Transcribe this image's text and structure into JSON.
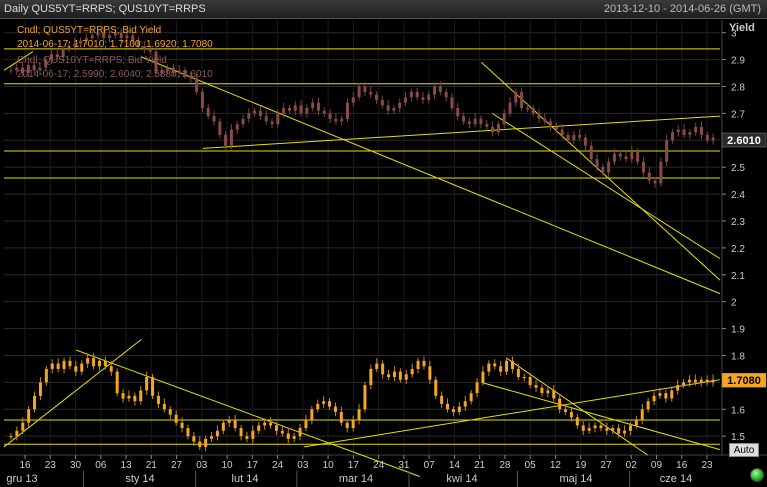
{
  "window": {
    "title": "Daily QUS5YT=RRPS; QUS10YT=RRPS",
    "date_range": "2013-12-10 - 2014-06-26 (GMT)"
  },
  "legend": {
    "series1_line1": "Cndl; QUS5YT=RRPS; Bid Yield",
    "series1_line2": "2014-06-17; 1.7010; 1.7100; 1.6920; 1.7080",
    "series2_line1": "Cndl; QUS10YT=RRPS; Bid Yield",
    "series2_line2": "2014-06-17; 2.5990; 2.6040; 2.5880; 2.6010"
  },
  "controls": {
    "auto_label": "Auto"
  },
  "colors": {
    "series1": "#f5a623",
    "series2": "#8b4a4a",
    "trendline": "#e6e000",
    "axis_text": "#cccccc",
    "grid": "#2a2a2a"
  },
  "chart_data": {
    "type": "candlestick",
    "y_axis_label": "Yield",
    "y_ticks": [
      "3",
      "2.9",
      "2.8",
      "2.7",
      "2.6",
      "2.5",
      "2.4",
      "2.3",
      "2.2",
      "2.1",
      "2",
      "1.9",
      "1.8",
      "1.7",
      "1.6",
      "1.5"
    ],
    "ylim": [
      1.43,
      3.01
    ],
    "x_day_ticks": [
      "16",
      "23",
      "30",
      "06",
      "13",
      "21",
      "27",
      "03",
      "10",
      "17",
      "24",
      "03",
      "10",
      "17",
      "24",
      "31",
      "07",
      "14",
      "21",
      "28",
      "05",
      "12",
      "19",
      "27",
      "02",
      "09",
      "16",
      "23"
    ],
    "x_month_labels": [
      "gru 13",
      "sty 14",
      "lut 14",
      "mar 14",
      "kwi 14",
      "maj 14",
      "cze 14"
    ],
    "price_labels": {
      "series1_last": "1.7080",
      "series2_last": "2.6010"
    },
    "series": [
      {
        "name": "QUS10YT=RRPS",
        "style": "candlestick",
        "last": {
          "date": "2014-06-17",
          "open": 2.599,
          "high": 2.604,
          "low": 2.588,
          "close": 2.601
        },
        "close": [
          2.86,
          2.87,
          2.85,
          2.88,
          2.86,
          2.87,
          2.9,
          2.92,
          2.91,
          2.94,
          2.95,
          2.96,
          2.97,
          2.98,
          2.99,
          3.0,
          2.98,
          2.99,
          3.0,
          2.98,
          2.99,
          2.97,
          2.95,
          2.94,
          2.93,
          2.85,
          2.86,
          2.87,
          2.85,
          2.86,
          2.84,
          2.83,
          2.78,
          2.72,
          2.69,
          2.67,
          2.62,
          2.58,
          2.64,
          2.66,
          2.68,
          2.7,
          2.71,
          2.69,
          2.67,
          2.66,
          2.7,
          2.72,
          2.71,
          2.73,
          2.7,
          2.72,
          2.74,
          2.71,
          2.7,
          2.68,
          2.67,
          2.68,
          2.74,
          2.76,
          2.8,
          2.78,
          2.77,
          2.75,
          2.73,
          2.71,
          2.72,
          2.74,
          2.76,
          2.78,
          2.76,
          2.75,
          2.77,
          2.8,
          2.78,
          2.76,
          2.72,
          2.69,
          2.67,
          2.66,
          2.68,
          2.66,
          2.65,
          2.63,
          2.66,
          2.7,
          2.74,
          2.78,
          2.72,
          2.72,
          2.7,
          2.68,
          2.67,
          2.65,
          2.64,
          2.62,
          2.6,
          2.62,
          2.61,
          2.58,
          2.53,
          2.5,
          2.48,
          2.52,
          2.55,
          2.54,
          2.53,
          2.56,
          2.52,
          2.48,
          2.45,
          2.44,
          2.52,
          2.6,
          2.63,
          2.64,
          2.62,
          2.63,
          2.65,
          2.62,
          2.6,
          2.61
        ]
      },
      {
        "name": "QUS5YT=RRPS",
        "style": "candlestick",
        "last": {
          "date": "2014-06-17",
          "open": 1.701,
          "high": 1.71,
          "low": 1.692,
          "close": 1.708
        },
        "close": [
          1.5,
          1.52,
          1.55,
          1.6,
          1.65,
          1.7,
          1.75,
          1.77,
          1.75,
          1.78,
          1.76,
          1.74,
          1.77,
          1.79,
          1.76,
          1.78,
          1.76,
          1.74,
          1.66,
          1.64,
          1.65,
          1.63,
          1.67,
          1.72,
          1.65,
          1.62,
          1.6,
          1.58,
          1.55,
          1.53,
          1.5,
          1.48,
          1.46,
          1.49,
          1.5,
          1.52,
          1.55,
          1.56,
          1.53,
          1.5,
          1.49,
          1.52,
          1.54,
          1.55,
          1.54,
          1.52,
          1.51,
          1.49,
          1.5,
          1.53,
          1.56,
          1.6,
          1.62,
          1.63,
          1.61,
          1.59,
          1.55,
          1.53,
          1.56,
          1.6,
          1.69,
          1.75,
          1.77,
          1.73,
          1.72,
          1.74,
          1.71,
          1.73,
          1.75,
          1.78,
          1.76,
          1.71,
          1.65,
          1.62,
          1.6,
          1.59,
          1.61,
          1.63,
          1.66,
          1.7,
          1.74,
          1.77,
          1.76,
          1.74,
          1.78,
          1.75,
          1.72,
          1.72,
          1.69,
          1.68,
          1.66,
          1.67,
          1.64,
          1.6,
          1.59,
          1.57,
          1.54,
          1.52,
          1.53,
          1.54,
          1.53,
          1.52,
          1.53,
          1.51,
          1.52,
          1.54,
          1.56,
          1.6,
          1.63,
          1.65,
          1.66,
          1.64,
          1.67,
          1.69,
          1.7,
          1.71,
          1.7,
          1.71,
          1.7,
          1.71
        ]
      }
    ],
    "trendlines": [
      {
        "series": "QUS10YT=RRPS",
        "points": [
          [
            "2013-12-10",
            2.86
          ],
          [
            "2013-12-18",
            2.93
          ]
        ]
      },
      {
        "series": "QUS10YT=RRPS",
        "points": [
          [
            "2014-01-17",
            2.91
          ],
          [
            "2014-06-26",
            2.03
          ]
        ]
      },
      {
        "series": "QUS10YT=RRPS",
        "points": [
          [
            "2014-02-03",
            2.57
          ],
          [
            "2014-06-26",
            2.69
          ]
        ]
      },
      {
        "series": "QUS10YT=RRPS",
        "points": [
          [
            "2014-04-21",
            2.89
          ],
          [
            "2014-06-26",
            2.08
          ]
        ]
      },
      {
        "series": "QUS10YT=RRPS",
        "points": [
          [
            "2014-04-24",
            2.7
          ],
          [
            "2014-06-26",
            2.16
          ]
        ]
      },
      {
        "series": "QUS10YT=RRPS",
        "type": "horizontal",
        "y": 2.94
      },
      {
        "series": "QUS10YT=RRPS",
        "type": "horizontal",
        "y": 2.81
      },
      {
        "series": "QUS10YT=RRPS",
        "type": "horizontal",
        "y": 2.56
      },
      {
        "series": "QUS10YT=RRPS",
        "type": "horizontal",
        "y": 2.46
      },
      {
        "series": "QUS5YT=RRPS",
        "points": [
          [
            "2013-12-10",
            1.46
          ],
          [
            "2014-01-17",
            1.86
          ]
        ]
      },
      {
        "series": "QUS5YT=RRPS",
        "points": [
          [
            "2013-12-30",
            1.82
          ],
          [
            "2014-04-04",
            1.35
          ]
        ]
      },
      {
        "series": "QUS5YT=RRPS",
        "points": [
          [
            "2014-03-03",
            1.46
          ],
          [
            "2014-06-26",
            1.71
          ]
        ]
      },
      {
        "series": "QUS5YT=RRPS",
        "points": [
          [
            "2014-04-21",
            1.7
          ],
          [
            "2014-06-26",
            1.45
          ]
        ]
      },
      {
        "series": "QUS5YT=RRPS",
        "points": [
          [
            "2014-04-28",
            1.79
          ],
          [
            "2014-06-06",
            1.43
          ]
        ]
      },
      {
        "series": "QUS5YT=RRPS",
        "type": "horizontal",
        "y": 1.56
      },
      {
        "series": "QUS5YT=RRPS",
        "type": "horizontal",
        "y": 1.47
      }
    ]
  }
}
